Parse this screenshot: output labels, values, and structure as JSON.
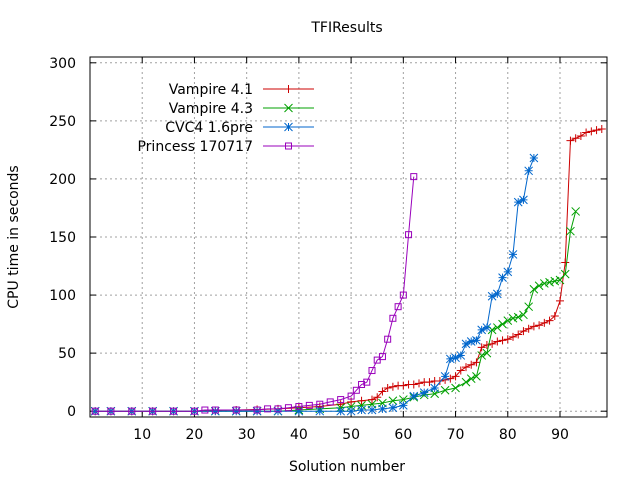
{
  "chart_data": {
    "type": "line",
    "title": "TFIResults",
    "xlabel": "Solution number",
    "ylabel": "CPU time in seconds",
    "xlim": [
      0,
      99
    ],
    "ylim": [
      -5,
      305
    ],
    "xticks": [
      10,
      20,
      30,
      40,
      50,
      60,
      70,
      80,
      90
    ],
    "yticks": [
      0,
      50,
      100,
      150,
      200,
      250,
      300
    ],
    "grid": true,
    "legend_position": "top-left",
    "series": [
      {
        "name": "Vampire 4.1",
        "color": "#cc0000",
        "marker": "plus",
        "x": [
          1,
          4,
          8,
          12,
          16,
          20,
          24,
          28,
          32,
          36,
          40,
          44,
          48,
          50,
          52,
          54,
          55,
          56,
          57,
          58,
          59,
          60,
          61,
          62,
          63,
          64,
          65,
          66,
          67,
          68,
          69,
          70,
          71,
          72,
          73,
          74,
          75,
          76,
          77,
          78,
          79,
          80,
          81,
          82,
          83,
          84,
          85,
          86,
          87,
          88,
          89,
          90,
          91,
          92,
          93,
          94,
          95,
          96,
          97,
          98
        ],
        "y": [
          0,
          0,
          0,
          0,
          0,
          0,
          0.5,
          1,
          1.5,
          2,
          3,
          4,
          6,
          8,
          9,
          10,
          12,
          17,
          20,
          21,
          22,
          22,
          23,
          23,
          24,
          25,
          25,
          26,
          26,
          27,
          28,
          30,
          35,
          38,
          40,
          42,
          55,
          57,
          58,
          60,
          61,
          62,
          64,
          66,
          69,
          71,
          73,
          74,
          76,
          78,
          82,
          95,
          128,
          233,
          235,
          237,
          240,
          241,
          242,
          243
        ]
      },
      {
        "name": "Vampire 4.3",
        "color": "#00a000",
        "marker": "cross",
        "x": [
          1,
          4,
          8,
          12,
          16,
          20,
          24,
          28,
          32,
          36,
          40,
          44,
          48,
          50,
          52,
          54,
          56,
          58,
          60,
          62,
          64,
          66,
          68,
          70,
          72,
          73,
          74,
          75,
          76,
          77,
          78,
          79,
          80,
          81,
          82,
          83,
          84,
          85,
          86,
          87,
          88,
          89,
          90,
          91,
          92,
          93
        ],
        "y": [
          0,
          0,
          0,
          0,
          0,
          0,
          0,
          0,
          0,
          0,
          1,
          2,
          3,
          4,
          5,
          6,
          7,
          9,
          10,
          12,
          14,
          15,
          18,
          20,
          25,
          28,
          30,
          48,
          50,
          70,
          72,
          75,
          78,
          80,
          81,
          83,
          90,
          105,
          108,
          110,
          111,
          112,
          113,
          118,
          155,
          172
        ]
      },
      {
        "name": "CVC4 1.6pre",
        "color": "#0066cc",
        "marker": "star",
        "x": [
          1,
          4,
          8,
          12,
          16,
          20,
          24,
          28,
          32,
          36,
          40,
          44,
          48,
          50,
          52,
          54,
          56,
          58,
          60,
          62,
          64,
          66,
          68,
          69,
          70,
          71,
          72,
          73,
          74,
          75,
          76,
          77,
          78,
          79,
          80,
          81,
          82,
          83,
          84,
          85
        ],
        "y": [
          0,
          0,
          0,
          0,
          0,
          0,
          0,
          0,
          0,
          0,
          0,
          0,
          0,
          0,
          1,
          1,
          2,
          3,
          5,
          13,
          16,
          20,
          30,
          45,
          46,
          48,
          58,
          60,
          61,
          70,
          72,
          99,
          101,
          115,
          120,
          135,
          180,
          182,
          207,
          218
        ]
      },
      {
        "name": "Princess 170717",
        "color": "#9900bb",
        "marker": "box",
        "x": [
          1,
          4,
          8,
          12,
          16,
          20,
          22,
          24,
          28,
          32,
          34,
          36,
          38,
          40,
          42,
          44,
          46,
          48,
          50,
          51,
          52,
          53,
          54,
          55,
          56,
          57,
          58,
          59,
          60,
          61,
          62
        ],
        "y": [
          0,
          0,
          0,
          0,
          0,
          0,
          1,
          1,
          1,
          1,
          2,
          2,
          3,
          4,
          5,
          6,
          8,
          10,
          13,
          18,
          23,
          25,
          35,
          44,
          47,
          62,
          80,
          90,
          100,
          152,
          202
        ]
      }
    ]
  }
}
